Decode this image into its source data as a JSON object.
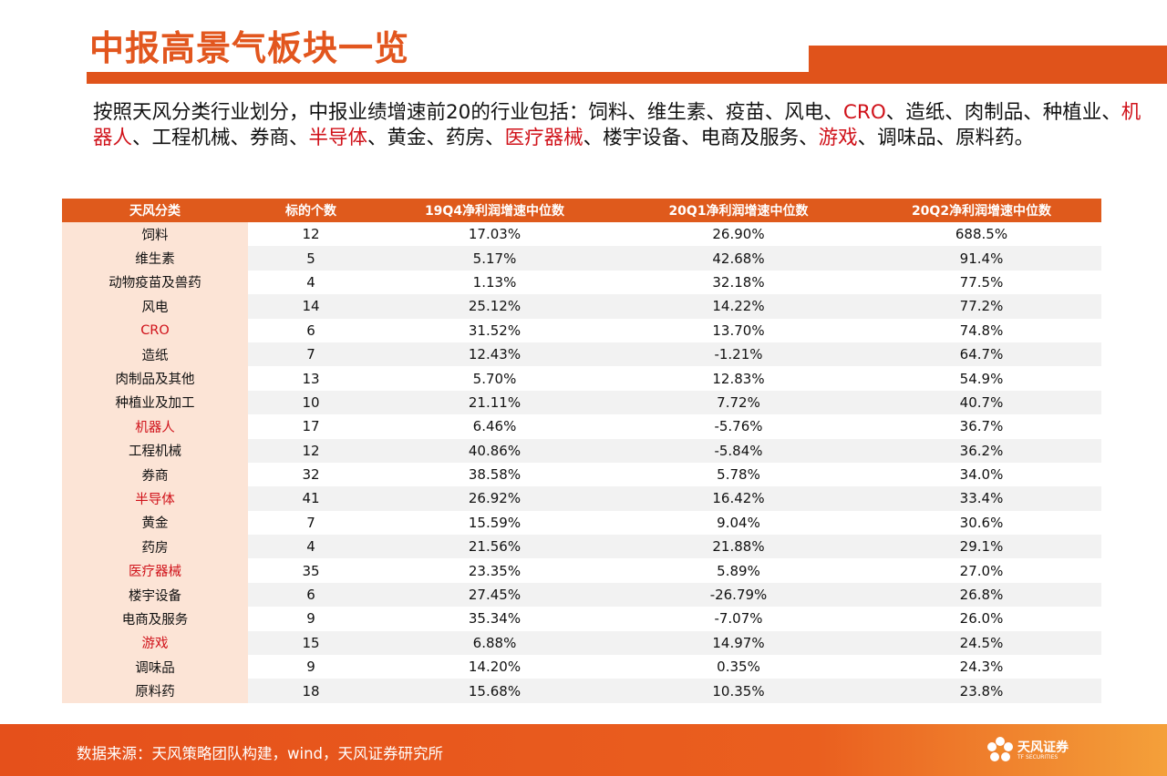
{
  "header": {
    "title": "中报高景气板块一览"
  },
  "intro": {
    "segments": [
      {
        "text": "按照天风分类行业划分，中报业绩增速前20的行业包括：饲料、维生素、疫苗、风电、",
        "highlight": false
      },
      {
        "text": "CRO",
        "highlight": true
      },
      {
        "text": "、造纸、肉制品、种植业、",
        "highlight": false
      },
      {
        "text": "机器人",
        "highlight": true
      },
      {
        "text": "、工程机械、券商、",
        "highlight": false
      },
      {
        "text": "半导体",
        "highlight": true
      },
      {
        "text": "、黄金、药房、",
        "highlight": false
      },
      {
        "text": "医疗器械",
        "highlight": true
      },
      {
        "text": "、楼宇设备、电商及服务、",
        "highlight": false
      },
      {
        "text": "游戏",
        "highlight": true
      },
      {
        "text": "、调味品、原料药。",
        "highlight": false
      }
    ]
  },
  "table": {
    "columns": [
      "天风分类",
      "标的个数",
      "19Q4净利润增速中位数",
      "20Q1净利润增速中位数",
      "20Q2净利润增速中位数"
    ],
    "rows": [
      {
        "cells": [
          "饲料",
          "12",
          "17.03%",
          "26.90%",
          "688.5%"
        ],
        "highlight": false
      },
      {
        "cells": [
          "维生素",
          "5",
          "5.17%",
          "42.68%",
          "91.4%"
        ],
        "highlight": false
      },
      {
        "cells": [
          "动物疫苗及兽药",
          "4",
          "1.13%",
          "32.18%",
          "77.5%"
        ],
        "highlight": false
      },
      {
        "cells": [
          "风电",
          "14",
          "25.12%",
          "14.22%",
          "77.2%"
        ],
        "highlight": false
      },
      {
        "cells": [
          "CRO",
          "6",
          "31.52%",
          "13.70%",
          "74.8%"
        ],
        "highlight": true
      },
      {
        "cells": [
          "造纸",
          "7",
          "12.43%",
          "-1.21%",
          "64.7%"
        ],
        "highlight": false
      },
      {
        "cells": [
          "肉制品及其他",
          "13",
          "5.70%",
          "12.83%",
          "54.9%"
        ],
        "highlight": false
      },
      {
        "cells": [
          "种植业及加工",
          "10",
          "21.11%",
          "7.72%",
          "40.7%"
        ],
        "highlight": false
      },
      {
        "cells": [
          "机器人",
          "17",
          "6.46%",
          "-5.76%",
          "36.7%"
        ],
        "highlight": true
      },
      {
        "cells": [
          "工程机械",
          "12",
          "40.86%",
          "-5.84%",
          "36.2%"
        ],
        "highlight": false
      },
      {
        "cells": [
          "券商",
          "32",
          "38.58%",
          "5.78%",
          "34.0%"
        ],
        "highlight": false
      },
      {
        "cells": [
          "半导体",
          "41",
          "26.92%",
          "16.42%",
          "33.4%"
        ],
        "highlight": true
      },
      {
        "cells": [
          "黄金",
          "7",
          "15.59%",
          "9.04%",
          "30.6%"
        ],
        "highlight": false
      },
      {
        "cells": [
          "药房",
          "4",
          "21.56%",
          "21.88%",
          "29.1%"
        ],
        "highlight": false
      },
      {
        "cells": [
          "医疗器械",
          "35",
          "23.35%",
          "5.89%",
          "27.0%"
        ],
        "highlight": true
      },
      {
        "cells": [
          "楼宇设备",
          "6",
          "27.45%",
          "-26.79%",
          "26.8%"
        ],
        "highlight": false
      },
      {
        "cells": [
          "电商及服务",
          "9",
          "35.34%",
          "-7.07%",
          "26.0%"
        ],
        "highlight": false
      },
      {
        "cells": [
          "游戏",
          "15",
          "6.88%",
          "14.97%",
          "24.5%"
        ],
        "highlight": true
      },
      {
        "cells": [
          "调味品",
          "9",
          "14.20%",
          "0.35%",
          "24.3%"
        ],
        "highlight": false
      },
      {
        "cells": [
          "原料药",
          "18",
          "15.68%",
          "10.35%",
          "23.8%"
        ],
        "highlight": false
      }
    ]
  },
  "footer": {
    "source": "数据来源：天风策略团队构建，wind，天风证券研究所",
    "logo": "天风证券",
    "logo_sub": "TF SECURITIES"
  }
}
